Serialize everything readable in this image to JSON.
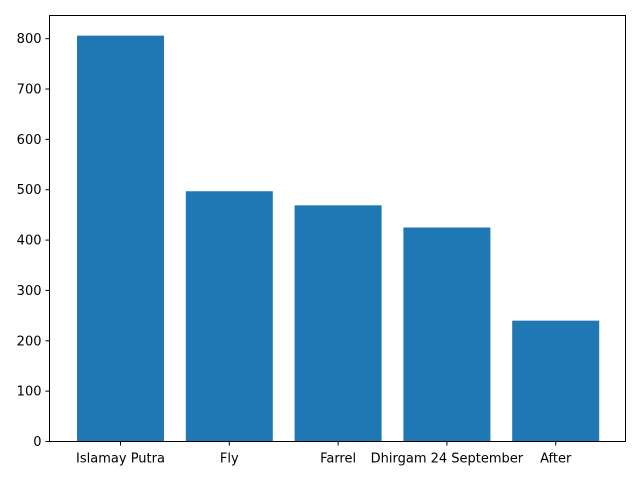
{
  "chart_data": {
    "type": "bar",
    "title": "",
    "xlabel": "",
    "ylabel": "",
    "categories": [
      "Islamay Putra",
      "Fly",
      "Farrel",
      "Dhirgam 24 September",
      "After"
    ],
    "values": [
      806,
      497,
      469,
      425,
      240
    ],
    "ylim": [
      0,
      846
    ],
    "yticks": [
      0,
      100,
      200,
      300,
      400,
      500,
      600,
      700,
      800
    ],
    "grid": false,
    "legend": "none",
    "bar_color": "#1f77b4"
  }
}
